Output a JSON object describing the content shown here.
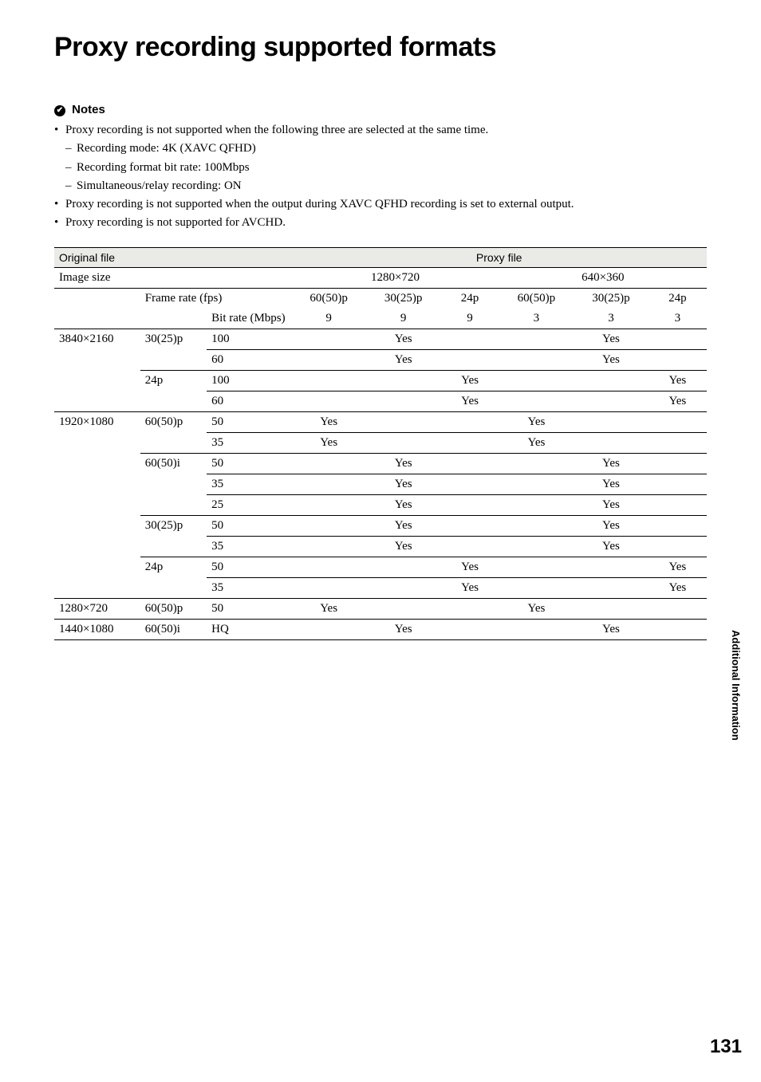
{
  "title": "Proxy recording supported formats",
  "notes": {
    "heading": "Notes",
    "items": [
      {
        "text": "Proxy recording is not supported when the following three are selected at the same time.",
        "subs": [
          "Recording mode: 4K (XAVC QFHD)",
          "Recording format bit rate: 100Mbps",
          "Simultaneous/relay recording: ON"
        ]
      },
      {
        "text": "Proxy recording is not supported when the output during XAVC QFHD recording is set to external output.",
        "subs": []
      },
      {
        "text": "Proxy recording is not supported for AVCHD.",
        "subs": []
      }
    ]
  },
  "table": {
    "header": {
      "original_file": "Original file",
      "proxy_file": "Proxy file",
      "image_size": "Image size",
      "proxy_sizes": [
        "1280×720",
        "640×360"
      ],
      "frame_rate_label": "Frame rate (fps)",
      "frame_rates": [
        "60(50)p",
        "30(25)p",
        "24p",
        "60(50)p",
        "30(25)p",
        "24p"
      ],
      "bit_rate_label": "Bit rate (Mbps)",
      "bit_rates": [
        "9",
        "9",
        "9",
        "3",
        "3",
        "3"
      ]
    },
    "groups": [
      {
        "image_size": "3840×2160",
        "subgroups": [
          {
            "frame_rate": "30(25)p",
            "rows": [
              {
                "bitrate": "100",
                "cells": [
                  "",
                  "Yes",
                  "",
                  "",
                  "Yes",
                  ""
                ]
              },
              {
                "bitrate": "60",
                "cells": [
                  "",
                  "Yes",
                  "",
                  "",
                  "Yes",
                  ""
                ]
              }
            ]
          },
          {
            "frame_rate": "24p",
            "rows": [
              {
                "bitrate": "100",
                "cells": [
                  "",
                  "",
                  "Yes",
                  "",
                  "",
                  "Yes"
                ]
              },
              {
                "bitrate": "60",
                "cells": [
                  "",
                  "",
                  "Yes",
                  "",
                  "",
                  "Yes"
                ]
              }
            ]
          }
        ]
      },
      {
        "image_size": "1920×1080",
        "subgroups": [
          {
            "frame_rate": "60(50)p",
            "rows": [
              {
                "bitrate": "50",
                "cells": [
                  "Yes",
                  "",
                  "",
                  "Yes",
                  "",
                  ""
                ]
              },
              {
                "bitrate": "35",
                "cells": [
                  "Yes",
                  "",
                  "",
                  "Yes",
                  "",
                  ""
                ]
              }
            ]
          },
          {
            "frame_rate": "60(50)i",
            "rows": [
              {
                "bitrate": "50",
                "cells": [
                  "",
                  "Yes",
                  "",
                  "",
                  "Yes",
                  ""
                ]
              },
              {
                "bitrate": "35",
                "cells": [
                  "",
                  "Yes",
                  "",
                  "",
                  "Yes",
                  ""
                ]
              },
              {
                "bitrate": "25",
                "cells": [
                  "",
                  "Yes",
                  "",
                  "",
                  "Yes",
                  ""
                ]
              }
            ]
          },
          {
            "frame_rate": "30(25)p",
            "rows": [
              {
                "bitrate": "50",
                "cells": [
                  "",
                  "Yes",
                  "",
                  "",
                  "Yes",
                  ""
                ]
              },
              {
                "bitrate": "35",
                "cells": [
                  "",
                  "Yes",
                  "",
                  "",
                  "Yes",
                  ""
                ]
              }
            ]
          },
          {
            "frame_rate": "24p",
            "rows": [
              {
                "bitrate": "50",
                "cells": [
                  "",
                  "",
                  "Yes",
                  "",
                  "",
                  "Yes"
                ]
              },
              {
                "bitrate": "35",
                "cells": [
                  "",
                  "",
                  "Yes",
                  "",
                  "",
                  "Yes"
                ]
              }
            ]
          }
        ]
      },
      {
        "image_size": "1280×720",
        "subgroups": [
          {
            "frame_rate": "60(50)p",
            "rows": [
              {
                "bitrate": "50",
                "cells": [
                  "Yes",
                  "",
                  "",
                  "Yes",
                  "",
                  ""
                ]
              }
            ]
          }
        ]
      },
      {
        "image_size": "1440×1080",
        "subgroups": [
          {
            "frame_rate": "60(50)i",
            "rows": [
              {
                "bitrate": "HQ",
                "cells": [
                  "",
                  "Yes",
                  "",
                  "",
                  "Yes",
                  ""
                ]
              }
            ]
          }
        ]
      }
    ]
  },
  "side_label": "Additional Information",
  "page_number": "131"
}
